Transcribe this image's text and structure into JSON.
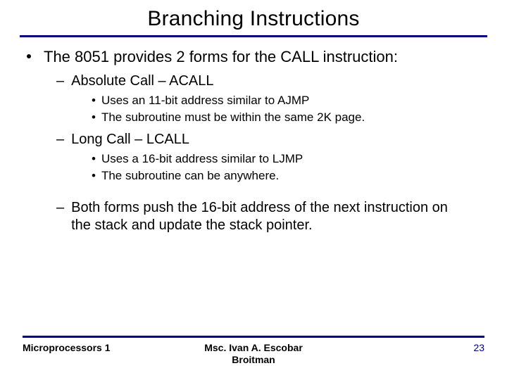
{
  "title": "Branching Instructions",
  "colors": {
    "accent": "#000080",
    "text": "#000000",
    "background": "#ffffff"
  },
  "typography": {
    "title_fontsize": 30,
    "l1_fontsize": 22,
    "l2_fontsize": 20,
    "l3_fontsize": 17,
    "footer_fontsize": 14
  },
  "bullets": {
    "l1": {
      "text": "The 8051 provides 2 forms for the CALL instruction:",
      "children": [
        {
          "text": "Absolute Call – ACALL",
          "children": [
            {
              "text": "Uses an 11-bit address similar to AJMP"
            },
            {
              "text": "The subroutine must be within the same 2K page."
            }
          ]
        },
        {
          "text": "Long Call – LCALL",
          "children": [
            {
              "text": "Uses a 16-bit address similar to LJMP"
            },
            {
              "text": "The subroutine can be anywhere."
            }
          ]
        },
        {
          "text": "Both forms push the 16-bit address of the next instruction on the stack and update the stack pointer."
        }
      ]
    }
  },
  "footer": {
    "left": "Microprocessors 1",
    "center_line1": "Msc. Ivan A. Escobar",
    "center_line2": "Broitman",
    "page": "23"
  }
}
